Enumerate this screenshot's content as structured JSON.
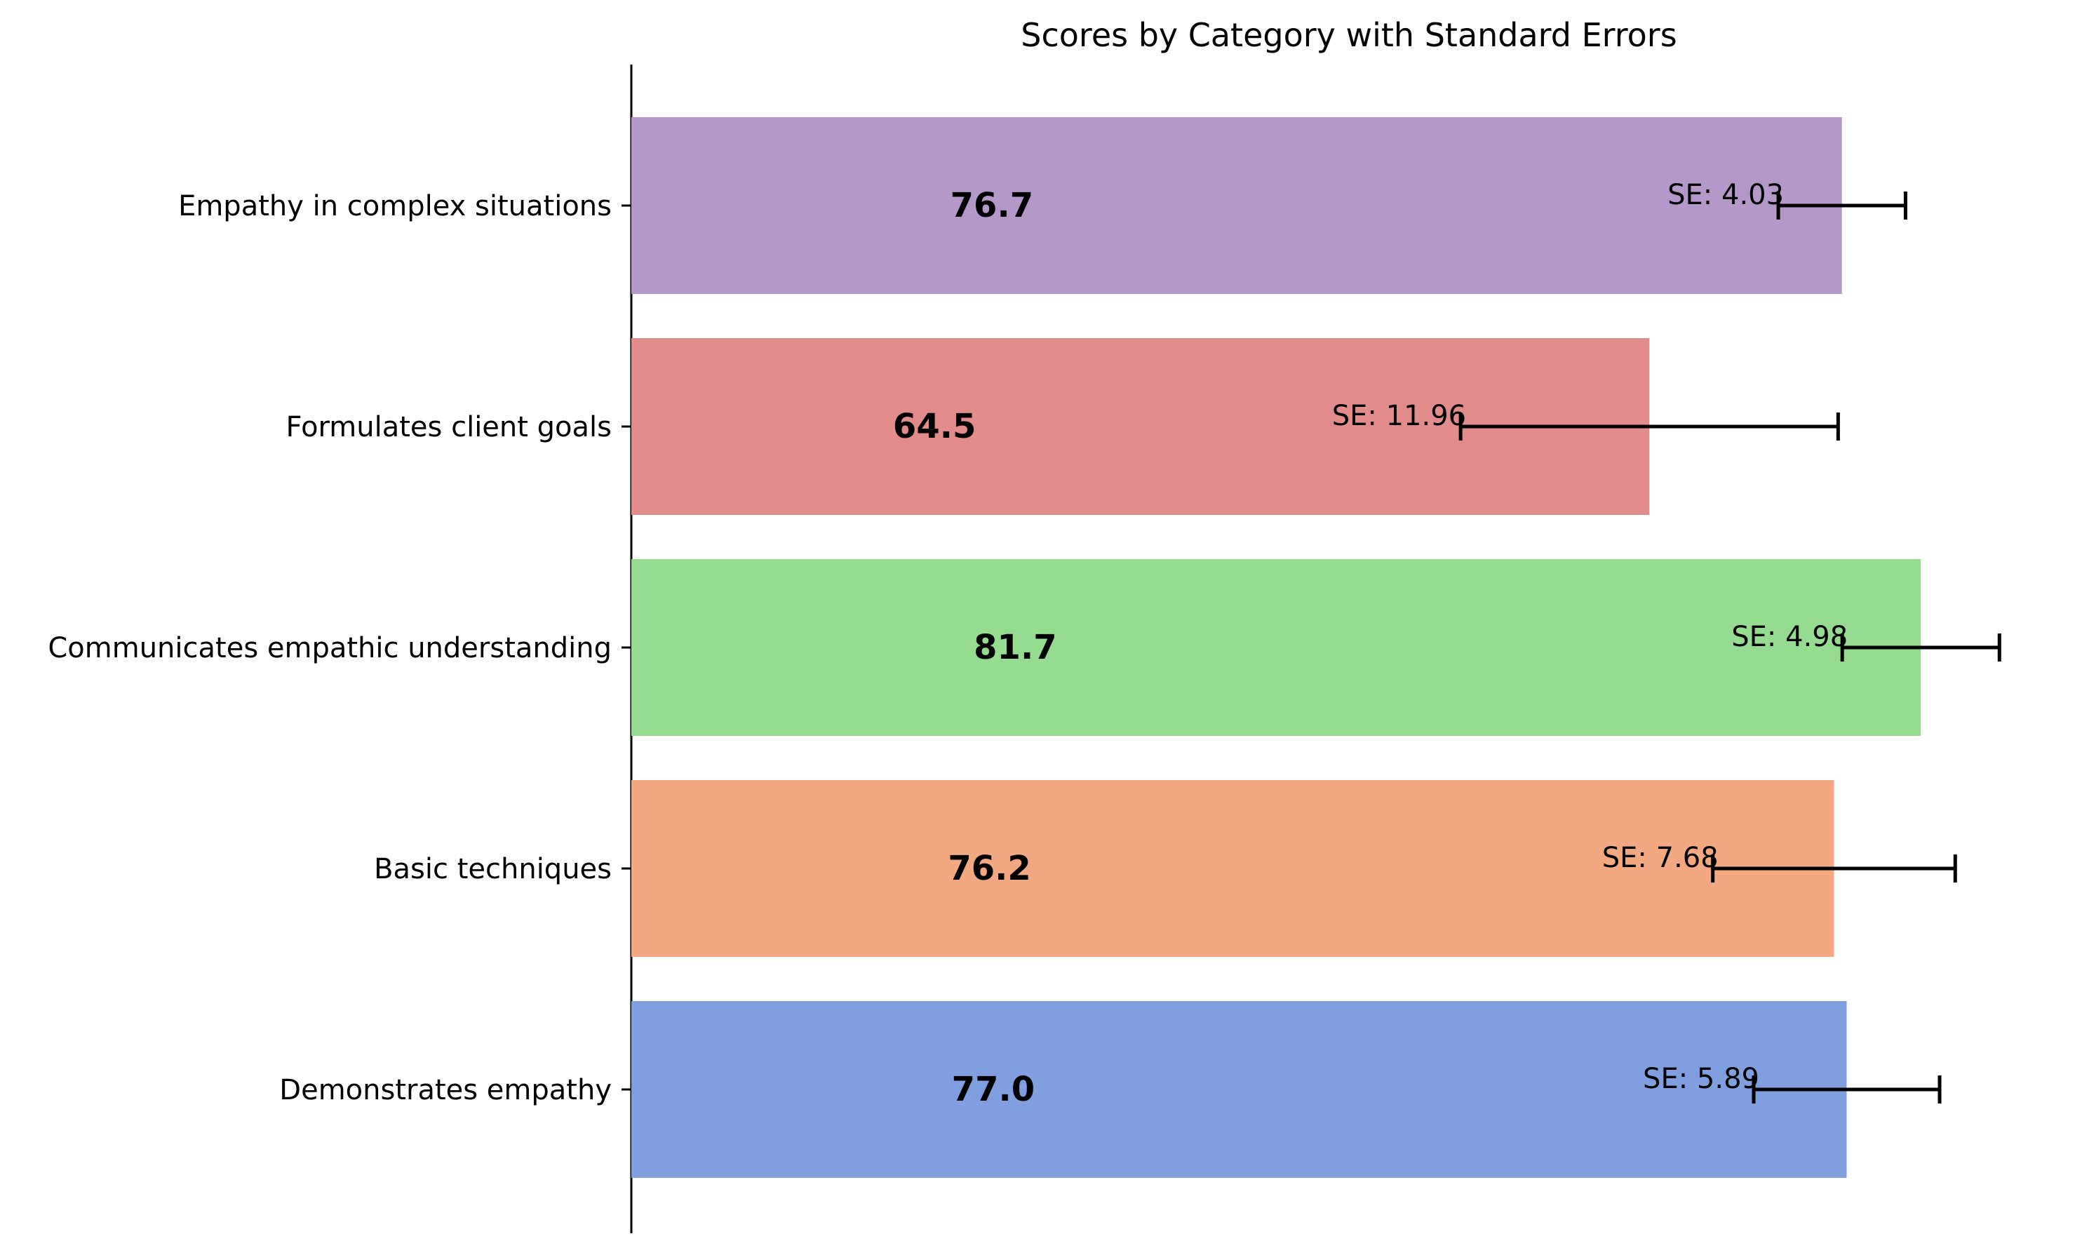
{
  "chart_data": {
    "type": "bar",
    "orientation": "horizontal",
    "title": "Scores by Category with Standard Errors",
    "xlabel": "",
    "ylabel": "",
    "xlim": [
      0,
      90
    ],
    "grid": false,
    "legend": "none",
    "categories": [
      "Demonstrates empathy",
      "Basic techniques",
      "Communicates empathic understanding",
      "Formulates client goals",
      "Empathy in complex situations"
    ],
    "values": [
      77.0,
      76.2,
      81.7,
      64.5,
      76.7
    ],
    "value_labels": [
      "77.0",
      "76.2",
      "81.7",
      "64.5",
      "76.7"
    ],
    "standard_errors": [
      5.89,
      7.68,
      4.98,
      11.96,
      4.03
    ],
    "se_labels": [
      "SE: 5.89",
      "SE: 7.68",
      "SE: 4.98",
      "SE: 11.96",
      "SE: 4.03"
    ],
    "colors": [
      "#7f9fde",
      "#f2a881",
      "#96dc90",
      "#e28b8b",
      "#b398c9"
    ]
  }
}
